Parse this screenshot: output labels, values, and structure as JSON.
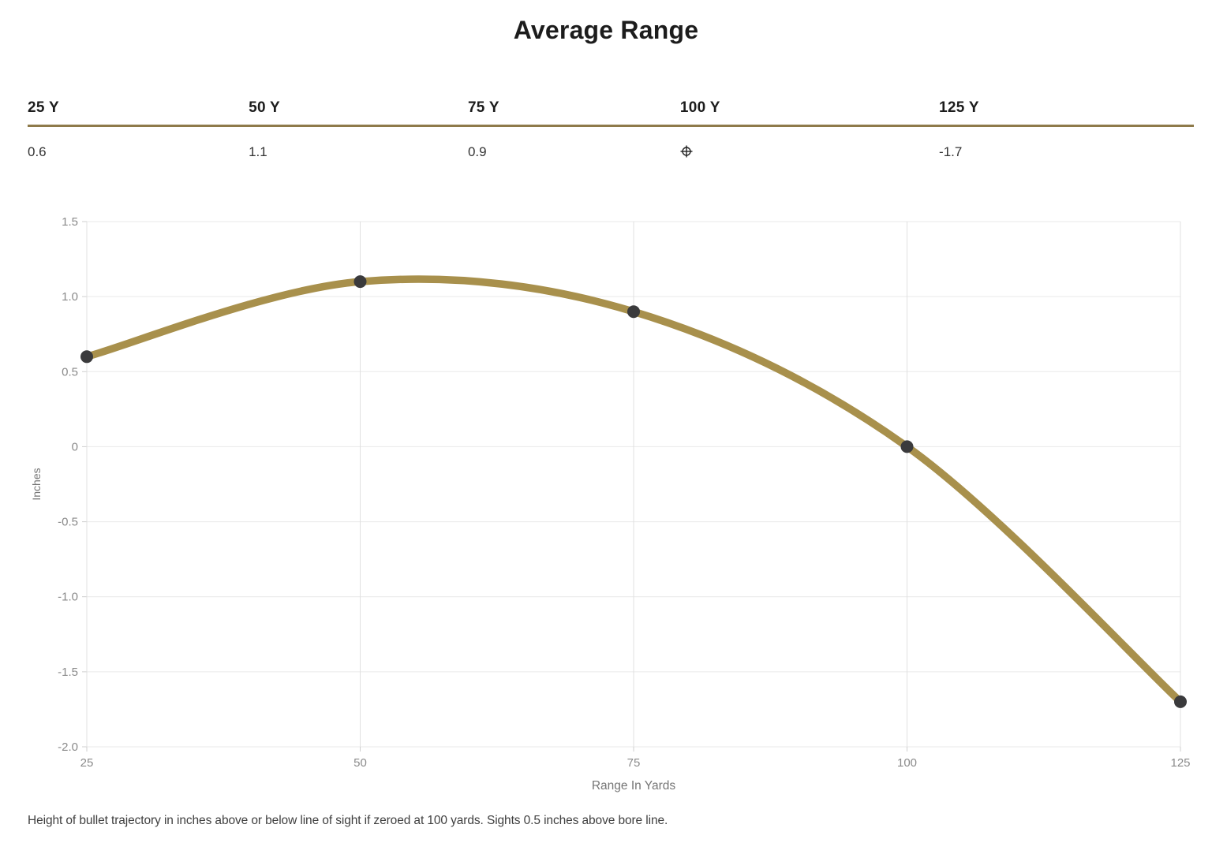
{
  "page": {
    "title": "Average Range",
    "footnote": "Height of bullet trajectory in inches above or below line of sight if zeroed at 100 yards. Sights 0.5 inches above bore line."
  },
  "summary_table": {
    "accent_color": "#8E7A4A",
    "zero_marker_color": "#222222",
    "columns": [
      {
        "label": "25 Y",
        "value": "0.6"
      },
      {
        "label": "50 Y",
        "value": "1.1"
      },
      {
        "label": "75 Y",
        "value": "0.9"
      },
      {
        "label": "100 Y",
        "value": "",
        "marker": "scope-zero-icon"
      },
      {
        "label": "125 Y",
        "value": "-1.7"
      }
    ]
  },
  "chart_data": {
    "type": "line",
    "title": "",
    "x": [
      25,
      50,
      75,
      100,
      125
    ],
    "series": [
      {
        "name": "Average Range",
        "values": [
          0.6,
          1.1,
          0.9,
          0,
          -1.7
        ]
      }
    ],
    "xlabel": "Range In Yards",
    "ylabel": "Inches",
    "xlim": [
      25,
      125
    ],
    "ylim": [
      -2.0,
      1.5
    ],
    "x_ticks": [
      25,
      50,
      75,
      100,
      125
    ],
    "y_ticks": [
      1.5,
      1.0,
      0.5,
      0,
      -0.5,
      -1.0,
      -1.5,
      -2.0
    ],
    "grid": true,
    "legend": false,
    "line_color": "#A8904C",
    "marker_color": "#3A3A3C",
    "grid_color": "#E9E9E9",
    "vgrid_color": "#E0E0E0",
    "tick_color": "#CFCFCF",
    "tick_label_color": "#8A8A8A",
    "axis_title_color": "#757575"
  }
}
